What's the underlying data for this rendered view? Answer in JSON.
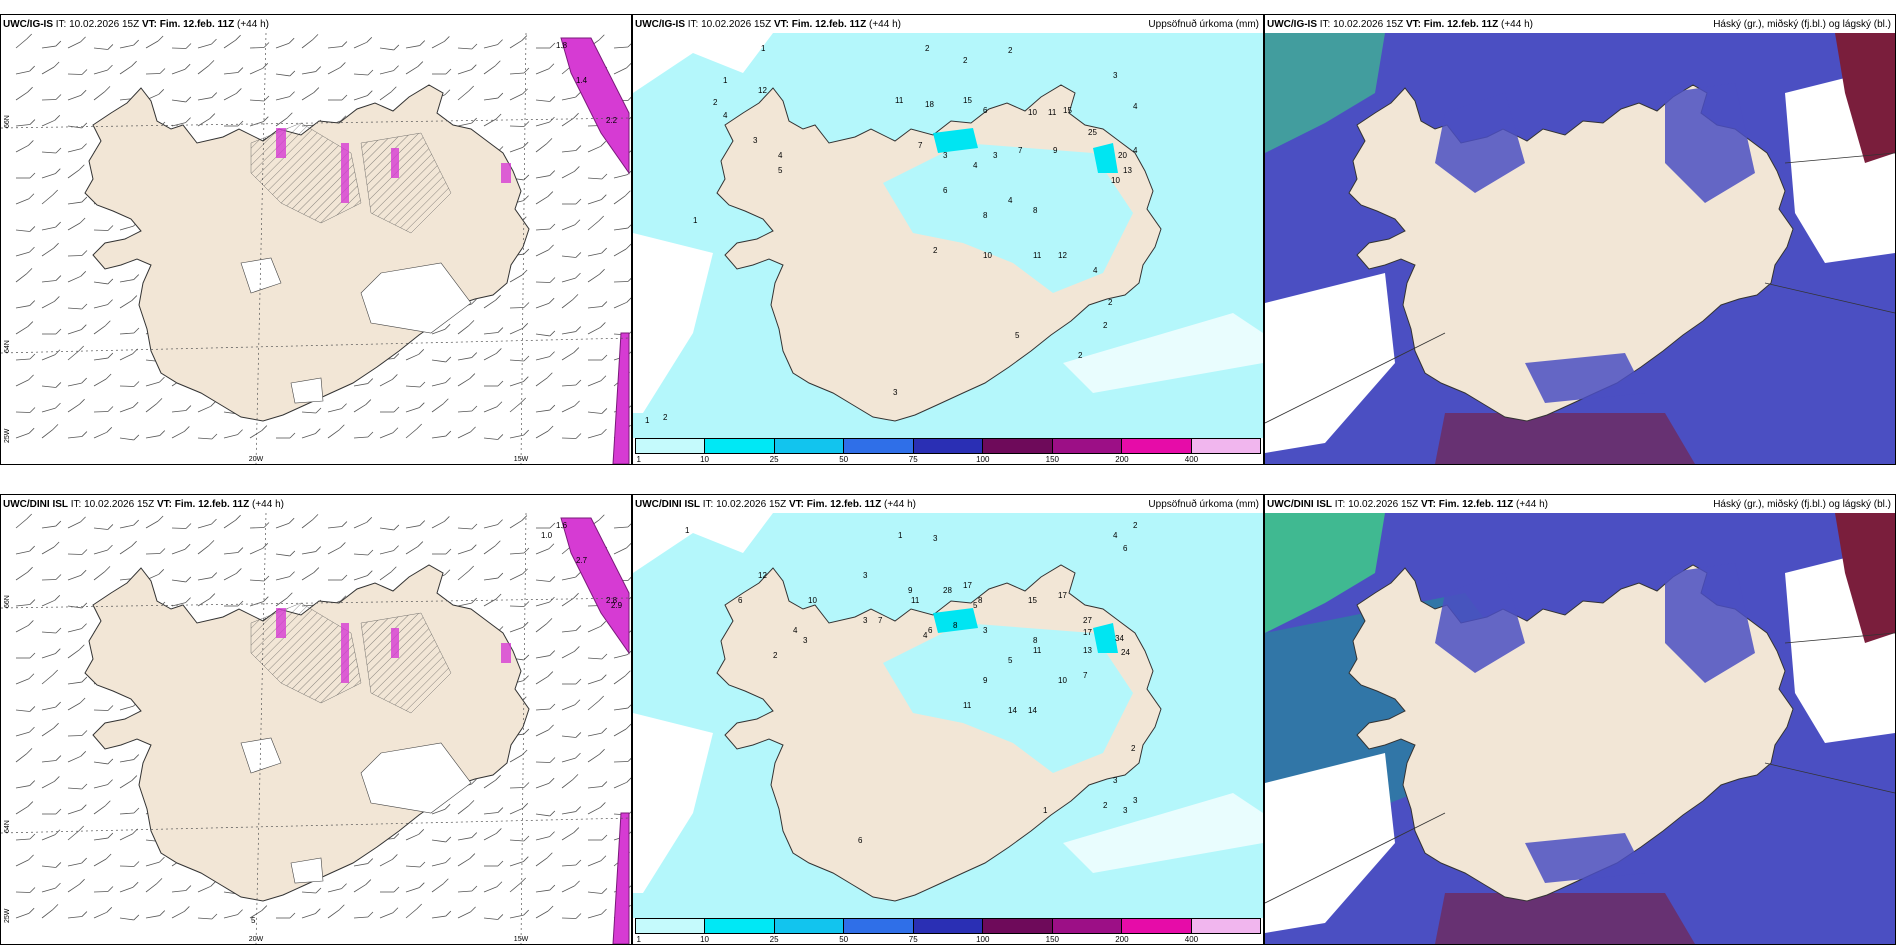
{
  "colors": {
    "land": "#f2e6d6",
    "precip_light": "#b4f7fb",
    "precip_mid": "#00e5f2",
    "cloud_high": "#4b4fc2",
    "cloud_mid": "#3fbf8e",
    "cloud_low": "#7a1e3c",
    "cloud_edge": "#2f8ee8",
    "jet": "#d63bd3"
  },
  "legend": {
    "labels": [
      "1",
      "10",
      "25",
      "50",
      "75",
      "100",
      "150",
      "200",
      "400"
    ],
    "colors": [
      "#c5fafc",
      "#00e8f5",
      "#12c4ee",
      "#2f6fe8",
      "#2a2fb4",
      "#6e0a5a",
      "#9c0f86",
      "#e60ca8",
      "#f1b6ee"
    ]
  },
  "rows": [
    {
      "left": {
        "model": "UWC/IG-IS",
        "it": " IT: 10.02.2026 15Z ",
        "vt_label": "VT:",
        "vt": " Fim. 12.feb. 11Z",
        "lead": " (+44 h)",
        "axis_lat": [
          "66N",
          "64N",
          "25W"
        ],
        "axis_lon": [
          "20W",
          "15W"
        ],
        "jet_values": [
          "1.8",
          "1.4",
          "2.2"
        ]
      },
      "mid": {
        "model": "UWC/IG-IS",
        "it": " IT: 10.02.2026 15Z ",
        "vt_label": "VT:",
        "vt": " Fim. 12.feb. 11Z",
        "lead": " (+44 h)",
        "subtitle": "Uppsöfnuð úrkoma (mm)",
        "values": [
          [
            "1",
            128,
            8
          ],
          [
            "2",
            292,
            8
          ],
          [
            "2",
            330,
            20
          ],
          [
            "2",
            375,
            10
          ],
          [
            "3",
            480,
            35
          ],
          [
            "4",
            500,
            66
          ],
          [
            "1",
            90,
            40
          ],
          [
            "12",
            125,
            50
          ],
          [
            "2",
            80,
            62
          ],
          [
            "4",
            90,
            75
          ],
          [
            "11",
            262,
            60
          ],
          [
            "18",
            292,
            64
          ],
          [
            "15",
            330,
            60
          ],
          [
            "6",
            350,
            70
          ],
          [
            "10",
            395,
            72
          ],
          [
            "11",
            415,
            72
          ],
          [
            "15",
            430,
            70
          ],
          [
            "25",
            455,
            92
          ],
          [
            "20",
            485,
            115
          ],
          [
            "13",
            490,
            130
          ],
          [
            "10",
            478,
            140
          ],
          [
            "4",
            500,
            110
          ],
          [
            "3",
            120,
            100
          ],
          [
            "4",
            145,
            115
          ],
          [
            "5",
            145,
            130
          ],
          [
            "7",
            285,
            105
          ],
          [
            "3",
            310,
            115
          ],
          [
            "6",
            310,
            150
          ],
          [
            "4",
            340,
            125
          ],
          [
            "3",
            360,
            115
          ],
          [
            "7",
            385,
            110
          ],
          [
            "9",
            420,
            110
          ],
          [
            "8",
            350,
            175
          ],
          [
            "4",
            375,
            160
          ],
          [
            "8",
            400,
            170
          ],
          [
            "10",
            350,
            215
          ],
          [
            "11",
            400,
            215
          ],
          [
            "12",
            425,
            215
          ],
          [
            "2",
            300,
            210
          ],
          [
            "4",
            460,
            230
          ],
          [
            "2",
            475,
            262
          ],
          [
            "2",
            470,
            285
          ],
          [
            "2",
            445,
            315
          ],
          [
            "5",
            382,
            295
          ],
          [
            "3",
            260,
            352
          ],
          [
            "1",
            60,
            180
          ],
          [
            "1",
            12,
            380
          ],
          [
            "2",
            30,
            377
          ]
        ]
      },
      "right": {
        "model": "UWC/IG-IS",
        "it": " IT: 10.02.2026 15Z ",
        "vt_label": "VT:",
        "vt": " Fim. 12.feb. 11Z",
        "lead": " (+44 h)",
        "subtitle": "Háský (gr.), miðský (fj.bl.) og lágský (bl.)"
      }
    },
    {
      "left": {
        "model": "UWC/DINI ISL",
        "it": " IT: 10.02.2026 15Z ",
        "vt_label": "VT:",
        "vt": " Fim. 12.feb. 11Z",
        "lead": " (+44 h)",
        "axis_lat": [
          "66N",
          "64N",
          "25W"
        ],
        "axis_lon": [
          "20W",
          "15W"
        ],
        "jet_values": [
          "1.6",
          "2.7",
          "2.8",
          "1.0",
          "2.9",
          "5"
        ]
      },
      "mid": {
        "model": "UWC/DINI ISL",
        "it": " IT: 10.02.2026 15Z ",
        "vt_label": "VT:",
        "vt": " Fim. 12.feb. 11Z",
        "lead": " (+44 h)",
        "subtitle": "Uppsöfnuð úrkoma (mm)",
        "values": [
          [
            "1",
            52,
            10
          ],
          [
            "1",
            265,
            15
          ],
          [
            "3",
            300,
            18
          ],
          [
            "4",
            480,
            15
          ],
          [
            "6",
            490,
            28
          ],
          [
            "2",
            500,
            5
          ],
          [
            "12",
            125,
            55
          ],
          [
            "6",
            105,
            80
          ],
          [
            "10",
            175,
            80
          ],
          [
            "3",
            230,
            55
          ],
          [
            "28",
            310,
            70
          ],
          [
            "17",
            330,
            65
          ],
          [
            "15",
            395,
            80
          ],
          [
            "17",
            425,
            75
          ],
          [
            "27",
            450,
            100
          ],
          [
            "34",
            482,
            118
          ],
          [
            "24",
            488,
            132
          ],
          [
            "17",
            450,
            112
          ],
          [
            "13",
            450,
            130
          ],
          [
            "8",
            345,
            80
          ],
          [
            "5",
            340,
            85
          ],
          [
            "9",
            275,
            70
          ],
          [
            "11",
            278,
            80
          ],
          [
            "3",
            230,
            100
          ],
          [
            "7",
            245,
            100
          ],
          [
            "4",
            160,
            110
          ],
          [
            "3",
            170,
            120
          ],
          [
            "2",
            140,
            135
          ],
          [
            "4",
            290,
            115
          ],
          [
            "6",
            295,
            110
          ],
          [
            "8",
            320,
            105
          ],
          [
            "3",
            350,
            110
          ],
          [
            "9",
            350,
            160
          ],
          [
            "5",
            375,
            140
          ],
          [
            "8",
            400,
            120
          ],
          [
            "11",
            400,
            130
          ],
          [
            "10",
            425,
            160
          ],
          [
            "7",
            450,
            155
          ],
          [
            "11",
            330,
            185
          ],
          [
            "14",
            375,
            190
          ],
          [
            "14",
            395,
            190
          ],
          [
            "6",
            225,
            320
          ],
          [
            "1",
            410,
            290
          ],
          [
            "2",
            470,
            285
          ],
          [
            "3",
            480,
            260
          ],
          [
            "3",
            500,
            280
          ],
          [
            "2",
            498,
            228
          ],
          [
            "3",
            490,
            290
          ]
        ]
      },
      "right": {
        "model": "UWC/DINI ISL",
        "it": " IT: 10.02.2026 15Z ",
        "vt_label": "VT:",
        "vt": " Fim. 12.feb. 11Z",
        "lead": " (+44 h)",
        "subtitle": "Háský (gr.), miðský (fj.bl.) og lágský (bl.)"
      }
    }
  ]
}
